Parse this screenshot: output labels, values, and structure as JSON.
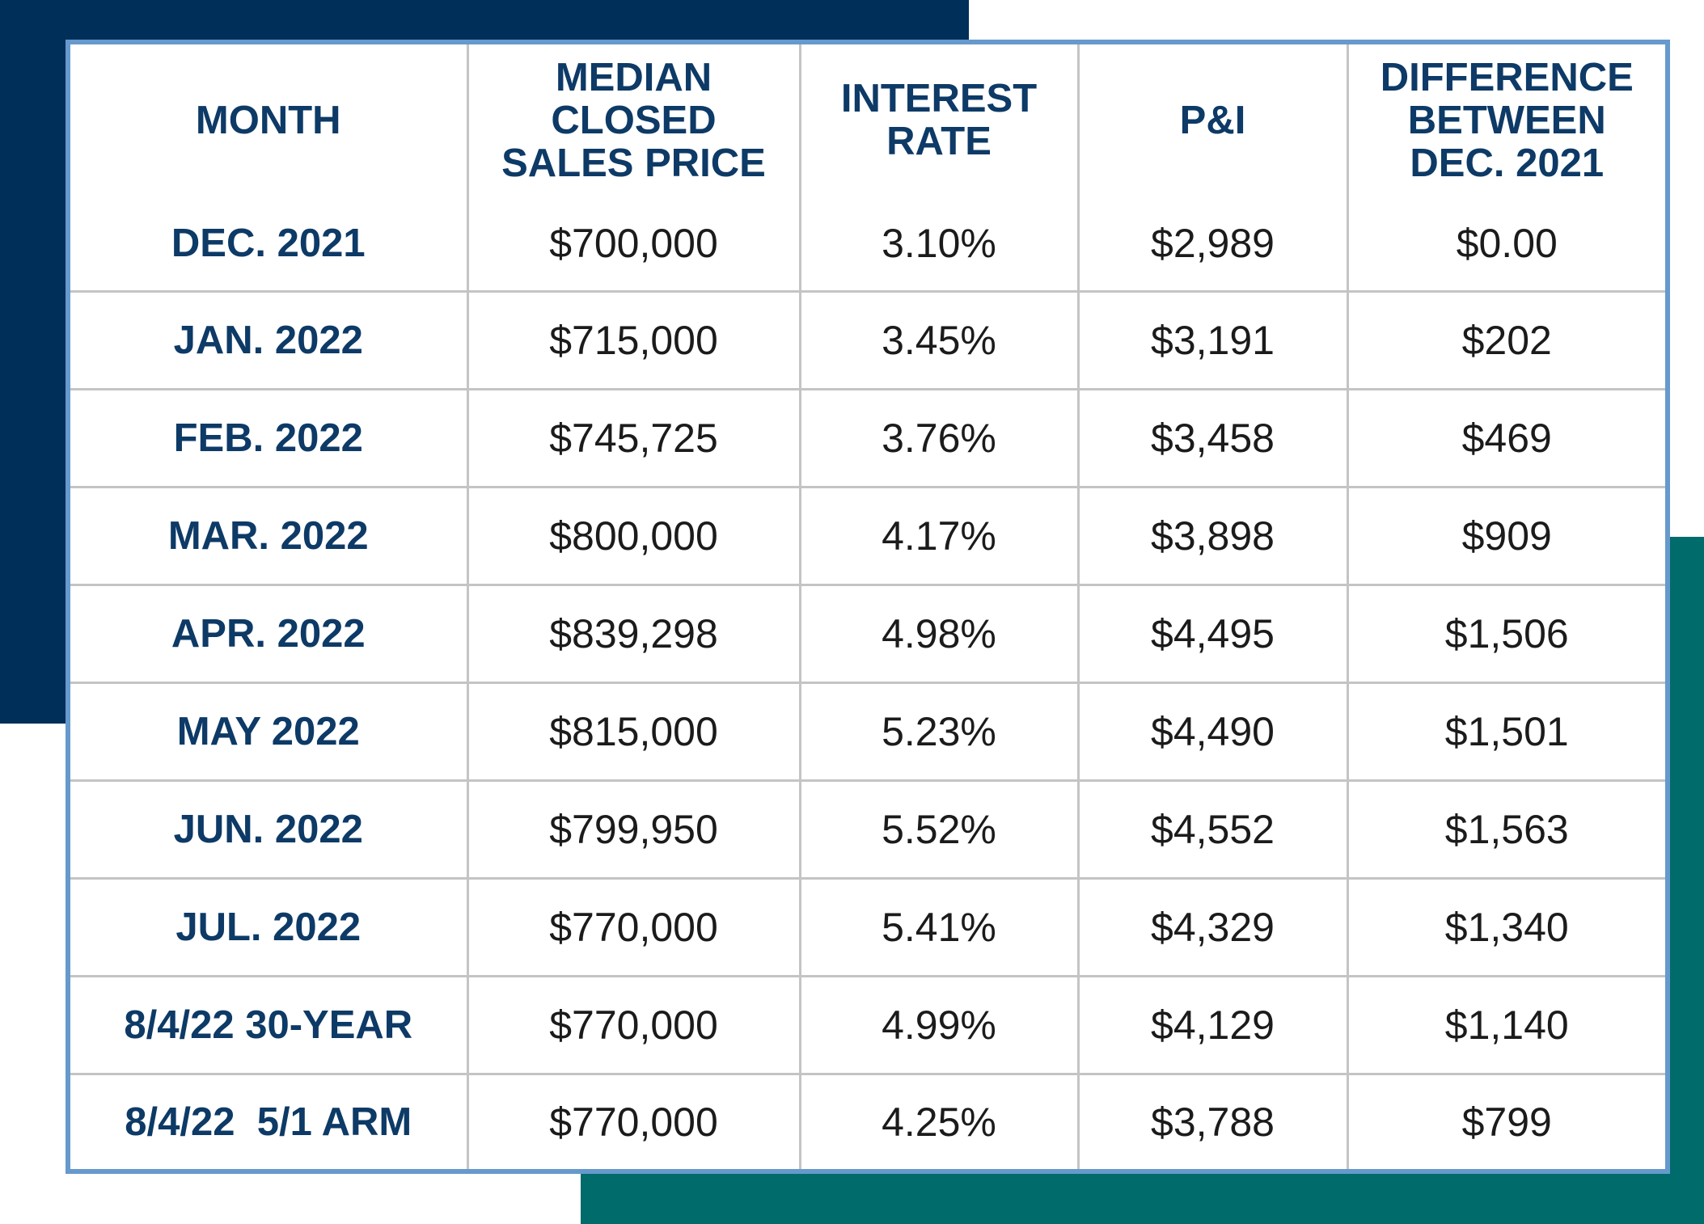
{
  "colors": {
    "navy_block": "#002f59",
    "teal_block": "#006b6b",
    "table_border": "#6699cc",
    "header_text": "#0d3a66",
    "grid_lines": "#c4c4c4"
  },
  "table": {
    "headers": [
      [
        "MONTH"
      ],
      [
        "MEDIAN",
        "CLOSED",
        "SALES PRICE"
      ],
      [
        "INTEREST",
        "RATE"
      ],
      [
        "P&I"
      ],
      [
        "DIFFERENCE",
        "BETWEEN",
        "DEC. 2021"
      ]
    ],
    "rows": [
      [
        "DEC. 2021",
        "$700,000",
        "3.10%",
        "$2,989",
        "$0.00"
      ],
      [
        "JAN. 2022",
        "$715,000",
        "3.45%",
        "$3,191",
        "$202"
      ],
      [
        "FEB. 2022",
        "$745,725",
        "3.76%",
        "$3,458",
        "$469"
      ],
      [
        "MAR. 2022",
        "$800,000",
        "4.17%",
        "$3,898",
        "$909"
      ],
      [
        "APR. 2022",
        "$839,298",
        "4.98%",
        "$4,495",
        "$1,506"
      ],
      [
        "MAY 2022",
        "$815,000",
        "5.23%",
        "$4,490",
        "$1,501"
      ],
      [
        "JUN. 2022",
        "$799,950",
        "5.52%",
        "$4,552",
        "$1,563"
      ],
      [
        "JUL. 2022",
        "$770,000",
        "5.41%",
        "$4,329",
        "$1,340"
      ],
      [
        "8/4/22 30-YEAR",
        "$770,000",
        "4.99%",
        "$4,129",
        "$1,140"
      ],
      [
        "8/4/22  5/1 ARM",
        "$770,000",
        "4.25%",
        "$3,788",
        "$799"
      ]
    ]
  },
  "chart_data": {
    "type": "table",
    "columns": [
      "MONTH",
      "MEDIAN CLOSED SALES PRICE",
      "INTEREST RATE",
      "P&I",
      "DIFFERENCE BETWEEN DEC. 2021"
    ],
    "rows": [
      [
        "DEC. 2021",
        "$700,000",
        "3.10%",
        "$2,989",
        "$0.00"
      ],
      [
        "JAN. 2022",
        "$715,000",
        "3.45%",
        "$3,191",
        "$202"
      ],
      [
        "FEB. 2022",
        "$745,725",
        "3.76%",
        "$3,458",
        "$469"
      ],
      [
        "MAR. 2022",
        "$800,000",
        "4.17%",
        "$3,898",
        "$909"
      ],
      [
        "APR. 2022",
        "$839,298",
        "4.98%",
        "$4,495",
        "$1,506"
      ],
      [
        "MAY 2022",
        "$815,000",
        "5.23%",
        "$4,490",
        "$1,501"
      ],
      [
        "JUN. 2022",
        "$799,950",
        "5.52%",
        "$4,552",
        "$1,563"
      ],
      [
        "JUL. 2022",
        "$770,000",
        "5.41%",
        "$4,329",
        "$1,340"
      ],
      [
        "8/4/22 30-YEAR",
        "$770,000",
        "4.99%",
        "$4,129",
        "$1,140"
      ],
      [
        "8/4/22  5/1 ARM",
        "$770,000",
        "4.25%",
        "$3,788",
        "$799"
      ]
    ]
  }
}
